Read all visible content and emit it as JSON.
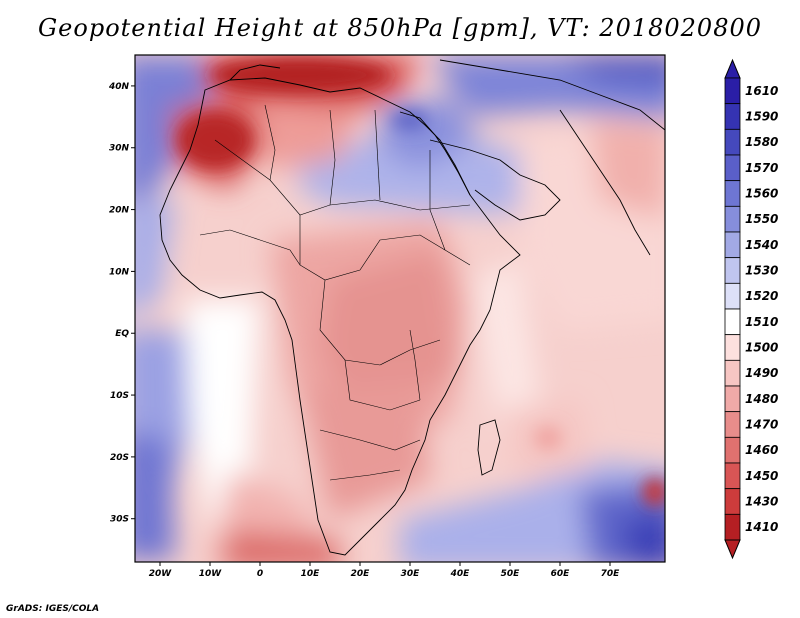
{
  "title": "Geopotential Height at 850hPa [gpm], VT: 2018020800",
  "credit": "GrADS: IGES/COLA",
  "map": {
    "variable": "Geopotential Height at 850hPa",
    "units": "gpm",
    "valid_time": "2018020800",
    "lon_range": [
      -25,
      81
    ],
    "lat_range": [
      -37,
      45
    ],
    "lon_ticks": [
      {
        "value": -20,
        "label": "20W"
      },
      {
        "value": -10,
        "label": "10W"
      },
      {
        "value": 0,
        "label": "0"
      },
      {
        "value": 10,
        "label": "10E"
      },
      {
        "value": 20,
        "label": "20E"
      },
      {
        "value": 30,
        "label": "30E"
      },
      {
        "value": 40,
        "label": "40E"
      },
      {
        "value": 50,
        "label": "50E"
      },
      {
        "value": 60,
        "label": "60E"
      },
      {
        "value": 70,
        "label": "70E"
      }
    ],
    "lat_ticks": [
      {
        "value": 40,
        "label": "40N"
      },
      {
        "value": 30,
        "label": "30N"
      },
      {
        "value": 20,
        "label": "20N"
      },
      {
        "value": 10,
        "label": "10N"
      },
      {
        "value": 0,
        "label": "EQ"
      },
      {
        "value": -10,
        "label": "10S"
      },
      {
        "value": -20,
        "label": "20S"
      },
      {
        "value": -30,
        "label": "30S"
      }
    ]
  },
  "colorbar": {
    "levels": [
      {
        "label": "1610",
        "color": "#2a1ea6"
      },
      {
        "label": "1590",
        "color": "#3533b2"
      },
      {
        "label": "1580",
        "color": "#4549bd"
      },
      {
        "label": "1570",
        "color": "#5a5fc9"
      },
      {
        "label": "1560",
        "color": "#6e76d3"
      },
      {
        "label": "1550",
        "color": "#868edc"
      },
      {
        "label": "1540",
        "color": "#a2a9e5"
      },
      {
        "label": "1530",
        "color": "#c0c5ef"
      },
      {
        "label": "1520",
        "color": "#dde0f8"
      },
      {
        "label": "1510",
        "color": "#ffffff"
      },
      {
        "label": "1500",
        "color": "#fde0de"
      },
      {
        "label": "1490",
        "color": "#f7c6c3"
      },
      {
        "label": "1480",
        "color": "#f0aaa8"
      },
      {
        "label": "1470",
        "color": "#e88d8b"
      },
      {
        "label": "1460",
        "color": "#e0716f"
      },
      {
        "label": "1450",
        "color": "#d95555"
      },
      {
        "label": "1430",
        "color": "#cd3c3c"
      },
      {
        "label": "1410",
        "color": "#b51f23"
      }
    ]
  }
}
